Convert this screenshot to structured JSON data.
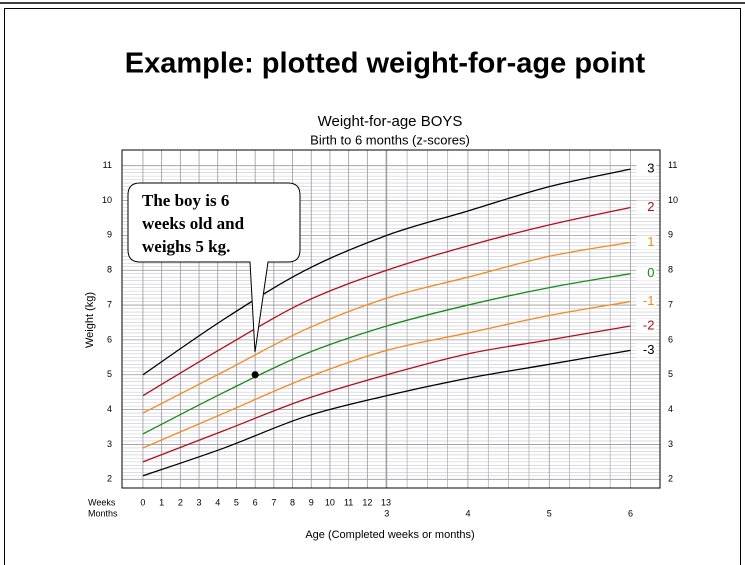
{
  "slide_title": "Example: plotted weight-for-age point",
  "chart_data": {
    "type": "line",
    "title": "Weight-for-age  BOYS",
    "subtitle": "Birth to 6 months (z-scores)",
    "y_label": "Weight (kg)",
    "x_label": "Age (Completed weeks or months)",
    "weeks_label": "Weeks",
    "months_label": "Months",
    "x": [
      0,
      4.35,
      8.69,
      13.04,
      17.38,
      21.73,
      26.07
    ],
    "series": [
      {
        "name": "3",
        "color": "#000000",
        "values": [
          5.0,
          6.6,
          8.0,
          9.0,
          9.7,
          10.4,
          10.9
        ]
      },
      {
        "name": "2",
        "color": "#b0101a",
        "values": [
          4.4,
          5.8,
          7.1,
          8.0,
          8.7,
          9.3,
          9.8
        ]
      },
      {
        "name": "1",
        "color": "#f28a1e",
        "values": [
          3.9,
          5.1,
          6.3,
          7.2,
          7.8,
          8.4,
          8.8
        ]
      },
      {
        "name": "0",
        "color": "#1a8a1a",
        "values": [
          3.3,
          4.5,
          5.6,
          6.4,
          7.0,
          7.5,
          7.9
        ]
      },
      {
        "name": "-1",
        "color": "#f28a1e",
        "values": [
          2.9,
          3.9,
          4.9,
          5.7,
          6.2,
          6.7,
          7.1
        ]
      },
      {
        "name": "-2",
        "color": "#b0101a",
        "values": [
          2.5,
          3.4,
          4.3,
          5.0,
          5.6,
          6.0,
          6.4
        ]
      },
      {
        "name": "-3",
        "color": "#000000",
        "values": [
          2.1,
          2.9,
          3.8,
          4.4,
          4.9,
          5.3,
          5.7
        ]
      }
    ],
    "xlim": [
      -1.12,
      27.65
    ],
    "ylim": [
      1.75,
      11.45
    ],
    "yticks": [
      2,
      3,
      4,
      5,
      6,
      7,
      8,
      9,
      10,
      11
    ],
    "xticks": [
      0,
      1,
      2,
      3,
      4,
      5,
      6,
      7,
      8,
      9,
      10,
      11,
      12,
      13
    ],
    "xticks_months": [
      {
        "value": 13.04,
        "label": "3"
      },
      {
        "value": 17.38,
        "label": "4"
      },
      {
        "value": 21.73,
        "label": "5"
      },
      {
        "value": 26.07,
        "label": "6"
      }
    ],
    "grid": true,
    "point": {
      "x": 6,
      "y": 5
    },
    "callout": [
      "The boy is 6",
      "weeks old and",
      "weighs 5 kg."
    ]
  }
}
